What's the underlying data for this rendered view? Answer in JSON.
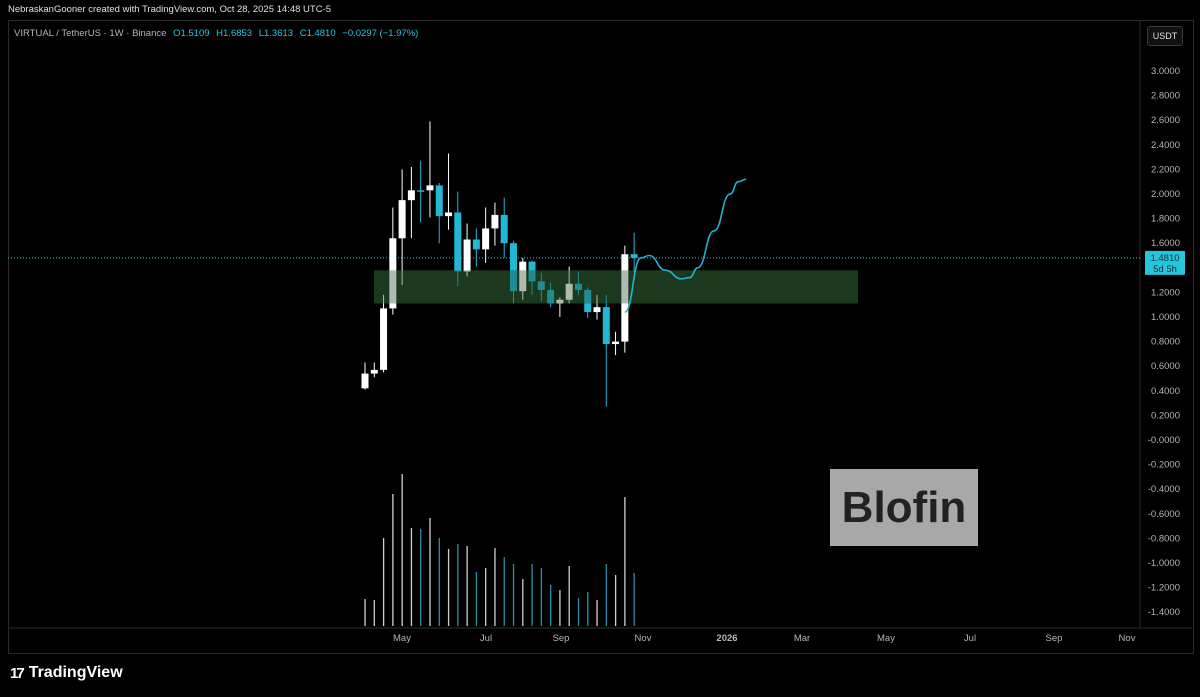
{
  "attribution": "NebraskanGooner created with TradingView.com, Oct 28, 2025 14:48 UTC-5",
  "legend": {
    "symbol": "VIRTUAL / TetherUS · 1W · Binance",
    "open": "O1.5109",
    "high": "H1.6853",
    "low": "L1.3613",
    "close": "C1.4810",
    "change": "−0.0297 (−1.97%)"
  },
  "currency_button": "USDT",
  "last_price": {
    "value": "1.4810",
    "countdown": "5d 5h"
  },
  "footer_brand": "TradingView",
  "watermark": "Blofin",
  "colors": {
    "up": "#ffffff",
    "down": "#22b8d4",
    "zone": "#1e3a1e",
    "projection": "#1fb3d1",
    "volume_down": "#2a8fa8"
  },
  "chart_data": {
    "type": "candlestick",
    "interval": "1W",
    "ylim": [
      -1.4,
      3.0
    ],
    "y_ticks": [
      "3.0000",
      "2.8000",
      "2.6000",
      "2.4000",
      "2.2000",
      "2.0000",
      "1.8000",
      "1.6000",
      "1.2000",
      "1.0000",
      "0.8000",
      "0.6000",
      "0.4000",
      "0.2000",
      "-0.0000",
      "-0.2000",
      "-0.4000",
      "-0.6000",
      "-0.8000",
      "-1.0000",
      "-1.2000",
      "-1.4000"
    ],
    "x_ticks": [
      "May",
      "Jul",
      "Sep",
      "Nov",
      "2026",
      "Mar",
      "May",
      "Jul",
      "Sep",
      "Nov"
    ],
    "candles": [
      [
        0.42,
        0.63,
        0.41,
        0.54
      ],
      [
        0.54,
        0.63,
        0.51,
        0.57
      ],
      [
        0.57,
        1.18,
        0.55,
        1.07
      ],
      [
        1.07,
        1.89,
        1.02,
        1.64
      ],
      [
        1.64,
        2.2,
        1.26,
        1.95
      ],
      [
        1.95,
        2.22,
        1.64,
        2.03
      ],
      [
        2.03,
        2.27,
        1.77,
        2.02
      ],
      [
        2.03,
        2.59,
        1.81,
        2.07
      ],
      [
        2.07,
        2.09,
        1.6,
        1.82
      ],
      [
        1.82,
        2.33,
        1.71,
        1.85
      ],
      [
        1.85,
        2.02,
        1.25,
        1.37
      ],
      [
        1.37,
        1.76,
        1.33,
        1.63
      ],
      [
        1.63,
        1.72,
        1.41,
        1.55
      ],
      [
        1.55,
        1.89,
        1.44,
        1.72
      ],
      [
        1.72,
        1.93,
        1.58,
        1.83
      ],
      [
        1.83,
        1.97,
        1.48,
        1.6
      ],
      [
        1.6,
        1.62,
        1.11,
        1.21
      ],
      [
        1.21,
        1.48,
        1.14,
        1.45
      ],
      [
        1.45,
        1.46,
        1.18,
        1.29
      ],
      [
        1.29,
        1.36,
        1.13,
        1.22
      ],
      [
        1.22,
        1.28,
        1.08,
        1.11
      ],
      [
        1.11,
        1.16,
        1.0,
        1.14
      ],
      [
        1.14,
        1.41,
        1.11,
        1.27
      ],
      [
        1.27,
        1.37,
        1.18,
        1.22
      ],
      [
        1.22,
        1.24,
        0.99,
        1.04
      ],
      [
        1.04,
        1.18,
        0.98,
        1.08
      ],
      [
        1.08,
        1.18,
        0.27,
        0.78
      ],
      [
        0.78,
        0.88,
        0.69,
        0.8
      ],
      [
        0.8,
        1.58,
        0.71,
        1.51
      ],
      [
        1.5109,
        1.6853,
        1.3613,
        1.481
      ]
    ],
    "volume_relative": [
      27,
      26,
      88,
      132,
      152,
      98,
      97,
      108,
      88,
      77,
      82,
      80,
      54,
      58,
      78,
      69,
      62,
      47,
      62,
      58,
      41,
      36,
      60,
      28,
      34,
      26,
      62,
      51,
      129,
      53
    ],
    "zone": {
      "low": 1.11,
      "high": 1.38
    },
    "projection": [
      [
        0,
        1.04
      ],
      [
        2,
        1.48
      ],
      [
        3,
        1.5
      ],
      [
        5,
        1.38
      ],
      [
        7,
        1.31
      ],
      [
        8,
        1.32
      ],
      [
        9,
        1.4
      ],
      [
        11,
        1.7
      ],
      [
        13,
        2.0
      ],
      [
        14,
        2.1
      ],
      [
        15,
        2.12
      ]
    ]
  }
}
